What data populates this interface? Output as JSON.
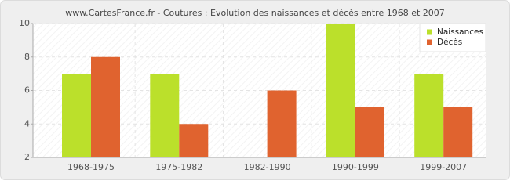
{
  "chart_data": {
    "type": "bar",
    "title": "www.CartesFrance.fr - Coutures : Evolution des naissances et décès entre 1968 et 2007",
    "categories": [
      "1968-1975",
      "1975-1982",
      "1982-1990",
      "1990-1999",
      "1999-2007"
    ],
    "series": [
      {
        "name": "Naissances",
        "color": "#bbe02b",
        "values": [
          7,
          7,
          2,
          10,
          7
        ]
      },
      {
        "name": "Décès",
        "color": "#e0632f",
        "values": [
          8,
          4,
          6,
          5,
          5
        ]
      }
    ],
    "ylim": [
      2,
      10
    ],
    "yticks": [
      2,
      4,
      6,
      8,
      10
    ],
    "grid": true,
    "legend": "top-right"
  }
}
